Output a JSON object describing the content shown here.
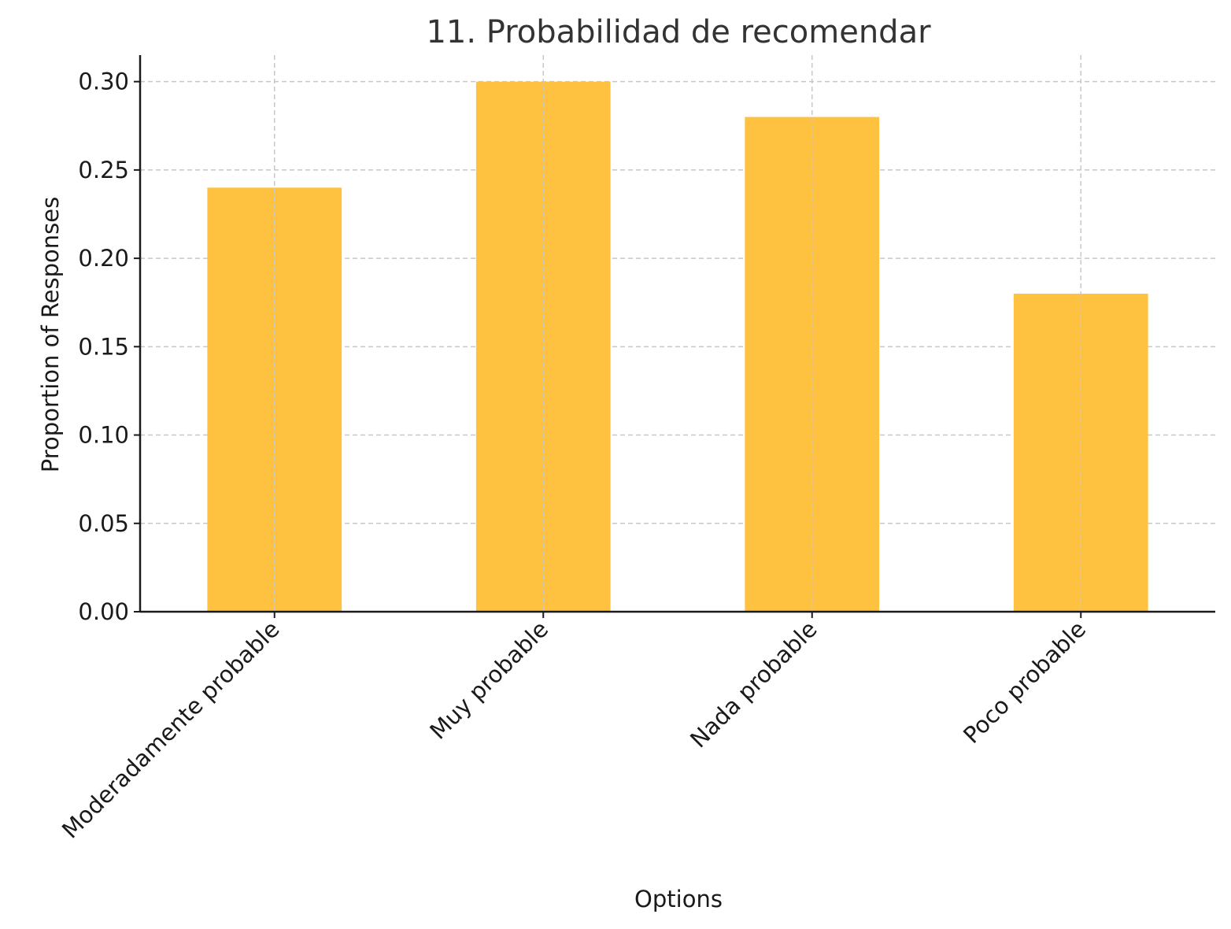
{
  "chart_data": {
    "type": "bar",
    "title": "11. Probabilidad de recomendar",
    "xlabel": "Options",
    "ylabel": "Proportion of Responses",
    "categories": [
      "Moderadamente probable",
      "Muy probable",
      "Nada probable",
      "Poco probable"
    ],
    "values": [
      0.24,
      0.3,
      0.28,
      0.18
    ],
    "ylim": [
      0,
      0.315
    ],
    "yticks": [
      "0.00",
      "0.05",
      "0.10",
      "0.15",
      "0.20",
      "0.25",
      "0.30"
    ],
    "bar_color": "#FFC240",
    "grid": true
  }
}
